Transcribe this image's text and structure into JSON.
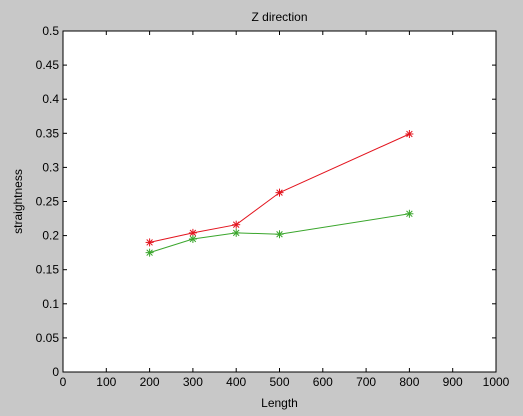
{
  "chart_data": {
    "type": "line",
    "title": "Z direction",
    "xlabel": "Length",
    "ylabel": "straightness",
    "xlim": [
      0,
      1000
    ],
    "ylim": [
      0,
      0.5
    ],
    "x_ticks": [
      "0",
      "100",
      "200",
      "300",
      "400",
      "500",
      "600",
      "700",
      "800",
      "900",
      "1000"
    ],
    "y_ticks": [
      "0",
      "0.05",
      "0.1",
      "0.15",
      "0.2",
      "0.25",
      "0.3",
      "0.35",
      "0.4",
      "0.45",
      "0.5"
    ],
    "grid": false,
    "legend": "none",
    "marker": "asterisk",
    "series": [
      {
        "color": "#e3141e",
        "x": [
          200,
          300,
          400,
          500,
          800
        ],
        "y": [
          0.19,
          0.204,
          0.216,
          0.263,
          0.349
        ]
      },
      {
        "color": "#3aa62c",
        "x": [
          200,
          300,
          400,
          500,
          800
        ],
        "y": [
          0.175,
          0.195,
          0.204,
          0.202,
          0.232
        ]
      }
    ]
  }
}
